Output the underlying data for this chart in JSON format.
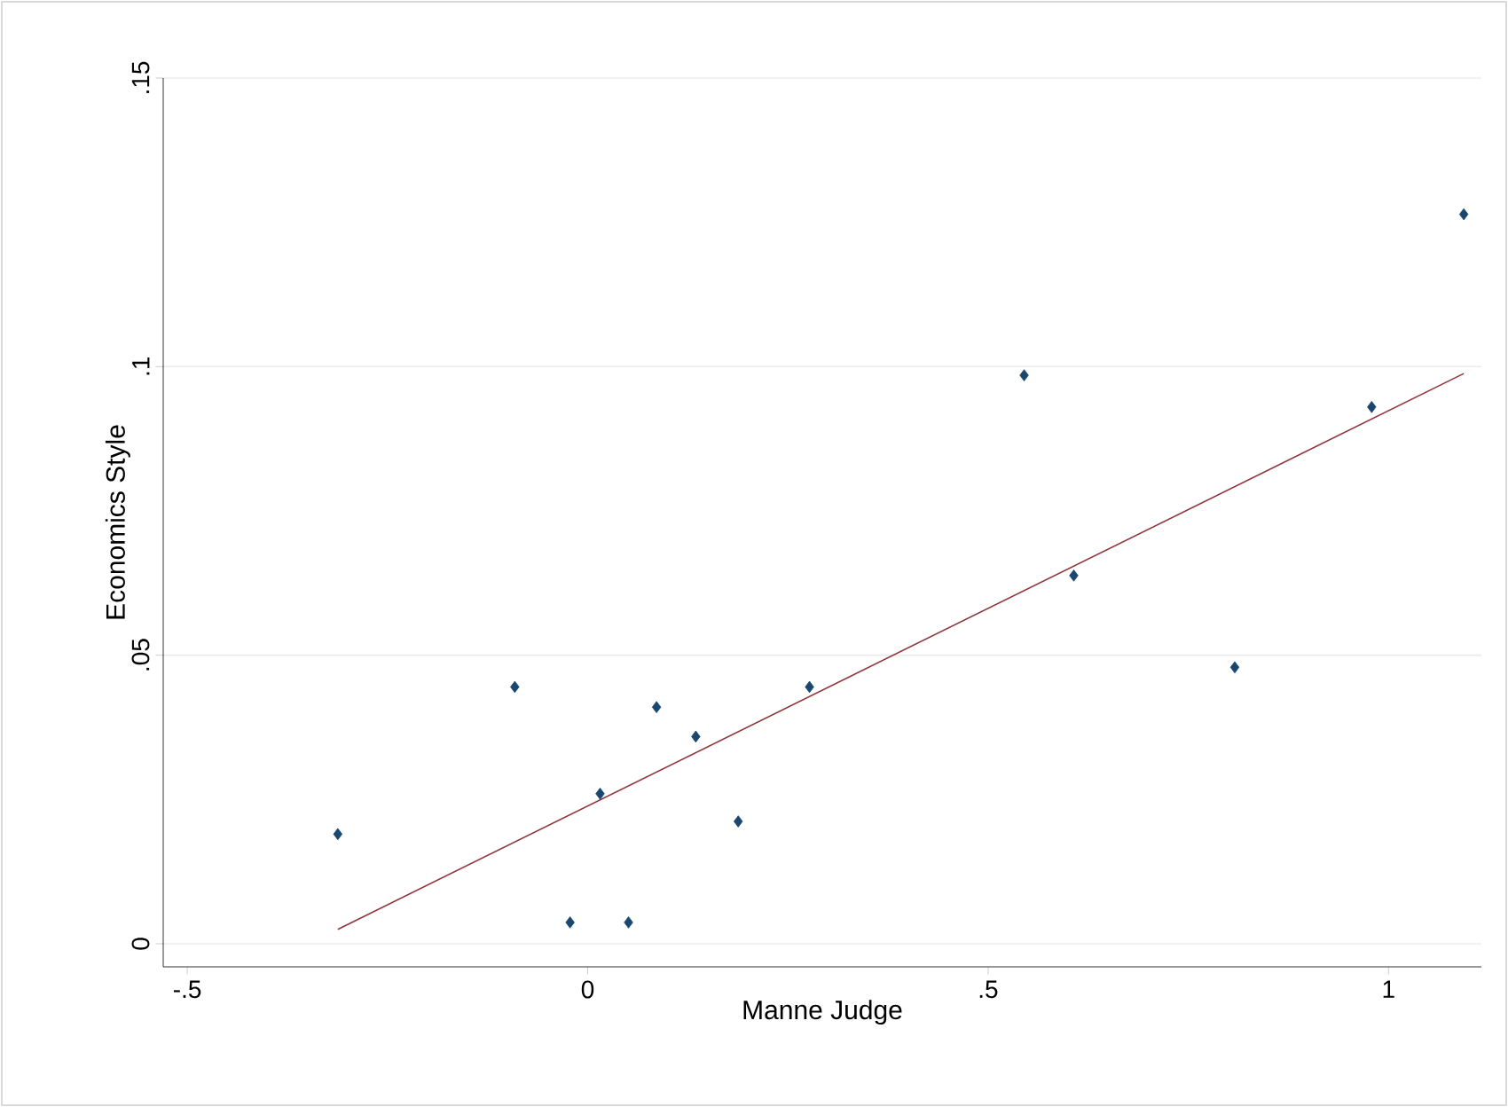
{
  "chart_data": {
    "type": "scatter",
    "xlabel": "Manne Judge",
    "ylabel": "Economics Style",
    "xlim": [
      -0.53,
      1.116
    ],
    "ylim": [
      -0.004,
      0.15
    ],
    "xticks": [
      {
        "value": -0.5,
        "label": "-.5"
      },
      0,
      {
        "value": 0.5,
        "label": ".5"
      },
      1
    ],
    "yticks": [
      0,
      {
        "value": 0.05,
        "label": ".05"
      },
      {
        "value": 0.1,
        "label": ".1"
      },
      {
        "value": 0.15,
        "label": ".15"
      }
    ],
    "grid": "y",
    "series": [
      {
        "color": "#1a476f",
        "marker": "diamond",
        "x": [
          -0.312,
          -0.091,
          -0.022,
          0.0155,
          0.051,
          0.086,
          0.135,
          0.188,
          0.277,
          0.545,
          0.607,
          0.808,
          0.979,
          1.094
        ],
        "values": [
          0.019,
          0.0445,
          0.0037,
          0.026,
          0.0037,
          0.041,
          0.0359,
          0.0212,
          0.0445,
          0.0985,
          0.0638,
          0.0479,
          0.093,
          0.1264
        ]
      },
      {
        "type": "line",
        "color": "#90353b",
        "marker": "none",
        "line_style": "solid",
        "x": [
          -0.312,
          1.094
        ],
        "values": [
          0.0025,
          0.0988
        ]
      }
    ]
  }
}
